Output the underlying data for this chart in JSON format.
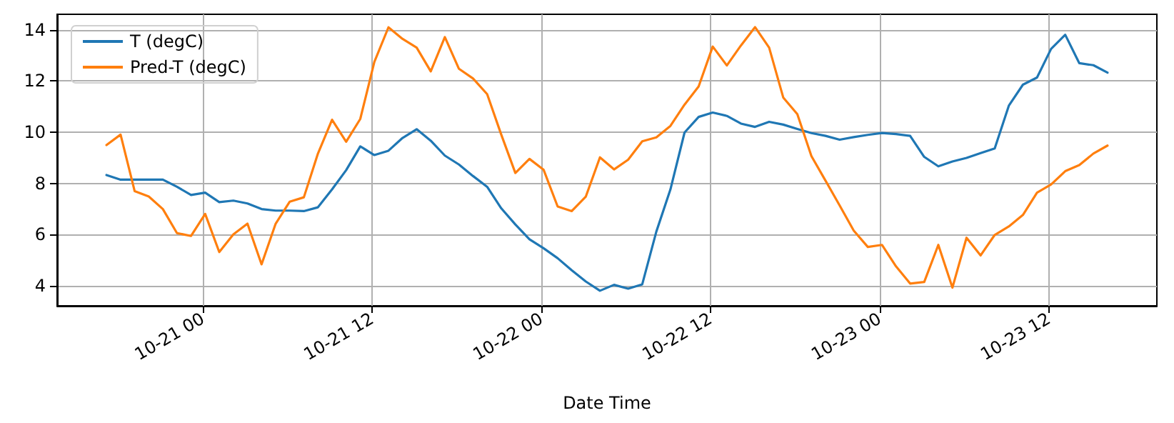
{
  "chart_data": {
    "type": "line",
    "xlabel": "Date Time",
    "x": [
      "--10-20T17:10",
      "--10-20T18:10",
      "--10-20T19:10",
      "--10-20T20:10",
      "--10-20T21:10",
      "--10-20T22:10",
      "--10-20T23:10",
      "--10-21T00:10",
      "--10-21T01:10",
      "--10-21T02:10",
      "--10-21T03:10",
      "--10-21T04:10",
      "--10-21T05:10",
      "--10-21T06:10",
      "--10-21T07:10",
      "--10-21T08:10",
      "--10-21T09:10",
      "--10-21T10:10",
      "--10-21T11:10",
      "--10-21T12:10",
      "--10-21T13:10",
      "--10-21T14:10",
      "--10-21T15:10",
      "--10-21T16:10",
      "--10-21T17:10",
      "--10-21T18:10",
      "--10-21T19:10",
      "--10-21T20:10",
      "--10-21T21:10",
      "--10-21T22:10",
      "--10-21T23:10",
      "--10-22T00:10",
      "--10-22T01:10",
      "--10-22T02:10",
      "--10-22T03:10",
      "--10-22T04:10",
      "--10-22T05:10",
      "--10-22T06:10",
      "--10-22T07:10",
      "--10-22T08:10",
      "--10-22T09:10",
      "--10-22T10:10",
      "--10-22T11:10",
      "--10-22T12:10",
      "--10-22T13:10",
      "--10-22T14:10",
      "--10-22T15:10",
      "--10-22T16:10",
      "--10-22T17:10",
      "--10-22T18:10",
      "--10-22T19:10",
      "--10-22T20:10",
      "--10-22T21:10",
      "--10-22T22:10",
      "--10-22T23:10",
      "--10-23T00:10",
      "--10-23T01:10",
      "--10-23T02:10",
      "--10-23T03:10",
      "--10-23T04:10",
      "--10-23T05:10",
      "--10-23T06:10",
      "--10-23T07:10",
      "--10-23T08:10",
      "--10-23T09:10",
      "--10-23T10:10",
      "--10-23T11:10",
      "--10-23T12:10",
      "--10-23T13:10",
      "--10-23T14:10",
      "--10-23T15:10",
      "--10-23T16:10"
    ],
    "series": [
      {
        "name": "T (degC)",
        "color": "#1f77b4",
        "values": [
          8.33,
          8.15,
          8.15,
          8.15,
          8.15,
          7.87,
          7.55,
          7.64,
          7.27,
          7.33,
          7.22,
          7.0,
          6.94,
          6.94,
          6.92,
          7.07,
          7.77,
          8.52,
          9.45,
          9.11,
          9.28,
          9.78,
          10.12,
          9.67,
          9.09,
          8.74,
          8.29,
          7.87,
          7.03,
          6.4,
          5.82,
          5.47,
          5.08,
          4.61,
          4.17,
          3.81,
          4.04,
          3.89,
          4.06,
          6.12,
          7.77,
          9.99,
          10.6,
          10.77,
          10.64,
          10.34,
          10.21,
          10.41,
          10.3,
          10.13,
          9.97,
          9.86,
          9.71,
          9.81,
          9.9,
          9.97,
          9.93,
          9.86,
          9.04,
          8.67,
          8.86,
          9.0,
          9.19,
          9.37,
          11.04,
          11.86,
          12.14,
          13.26,
          13.81,
          12.7,
          12.62,
          12.33
        ]
      },
      {
        "name": "Pred-T (degC)",
        "color": "#ff7f0e",
        "values": [
          9.5,
          9.91,
          7.7,
          7.49,
          7.0,
          6.06,
          5.95,
          6.81,
          5.32,
          6.01,
          6.43,
          4.84,
          6.43,
          7.29,
          7.46,
          9.17,
          10.49,
          9.63,
          10.52,
          12.75,
          14.1,
          13.65,
          13.31,
          12.38,
          13.72,
          12.48,
          12.1,
          11.49,
          9.91,
          8.41,
          8.96,
          8.54,
          7.1,
          6.92,
          7.49,
          9.02,
          8.55,
          8.93,
          9.65,
          9.8,
          10.25,
          11.08,
          11.79,
          13.35,
          12.61,
          13.39,
          14.11,
          13.31,
          11.36,
          10.71,
          9.07,
          8.11,
          7.14,
          6.16,
          5.52,
          5.6,
          4.76,
          4.09,
          4.15,
          5.6,
          3.93,
          5.88,
          5.19,
          5.99,
          6.32,
          6.77,
          7.64,
          7.96,
          8.48,
          8.72,
          9.17,
          9.48
        ]
      }
    ],
    "xlim": [
      "--10-20T13:40",
      "--10-23T19:40"
    ],
    "xticks": [
      {
        "value": "--10-21T00:00",
        "label": "10-21 00"
      },
      {
        "value": "--10-21T12:00",
        "label": "10-21 12"
      },
      {
        "value": "--10-22T00:00",
        "label": "10-22 00"
      },
      {
        "value": "--10-22T12:00",
        "label": "10-22 12"
      },
      {
        "value": "--10-23T00:00",
        "label": "10-23 00"
      },
      {
        "value": "--10-23T12:00",
        "label": "10-23 12"
      }
    ],
    "ylim": [
      3.22,
      14.61
    ],
    "yticks": [
      4,
      6,
      8,
      10,
      12,
      14
    ],
    "grid": true,
    "legend": "top left",
    "marker": "none",
    "line_style": "solid"
  }
}
